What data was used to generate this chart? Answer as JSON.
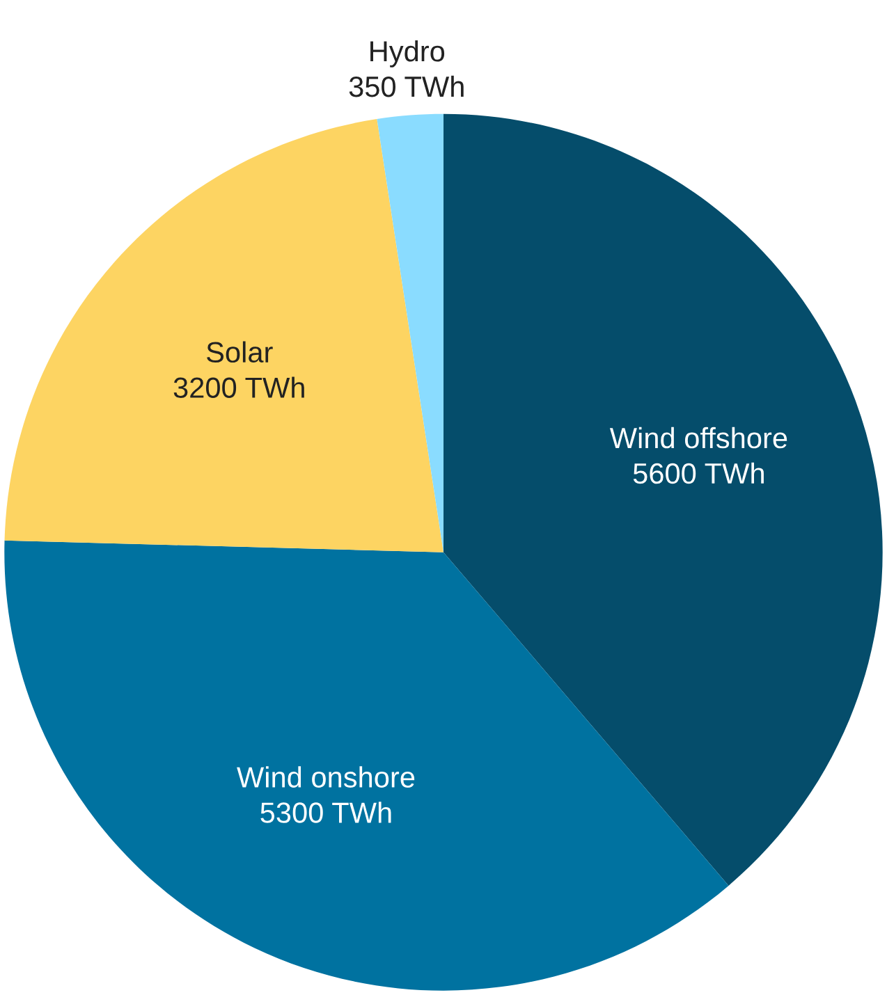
{
  "chart_data": {
    "type": "pie",
    "categories": [
      "Wind offshore",
      "Wind onshore",
      "Solar",
      "Hydro"
    ],
    "values": [
      5600,
      5300,
      3200,
      350
    ],
    "colors": [
      "#054d6b",
      "#0072a0",
      "#fdd462",
      "#8adcff"
    ],
    "value_labels": [
      "5600 TWh",
      "5300 TWh",
      "3200 TWh",
      "350 TWh"
    ]
  }
}
